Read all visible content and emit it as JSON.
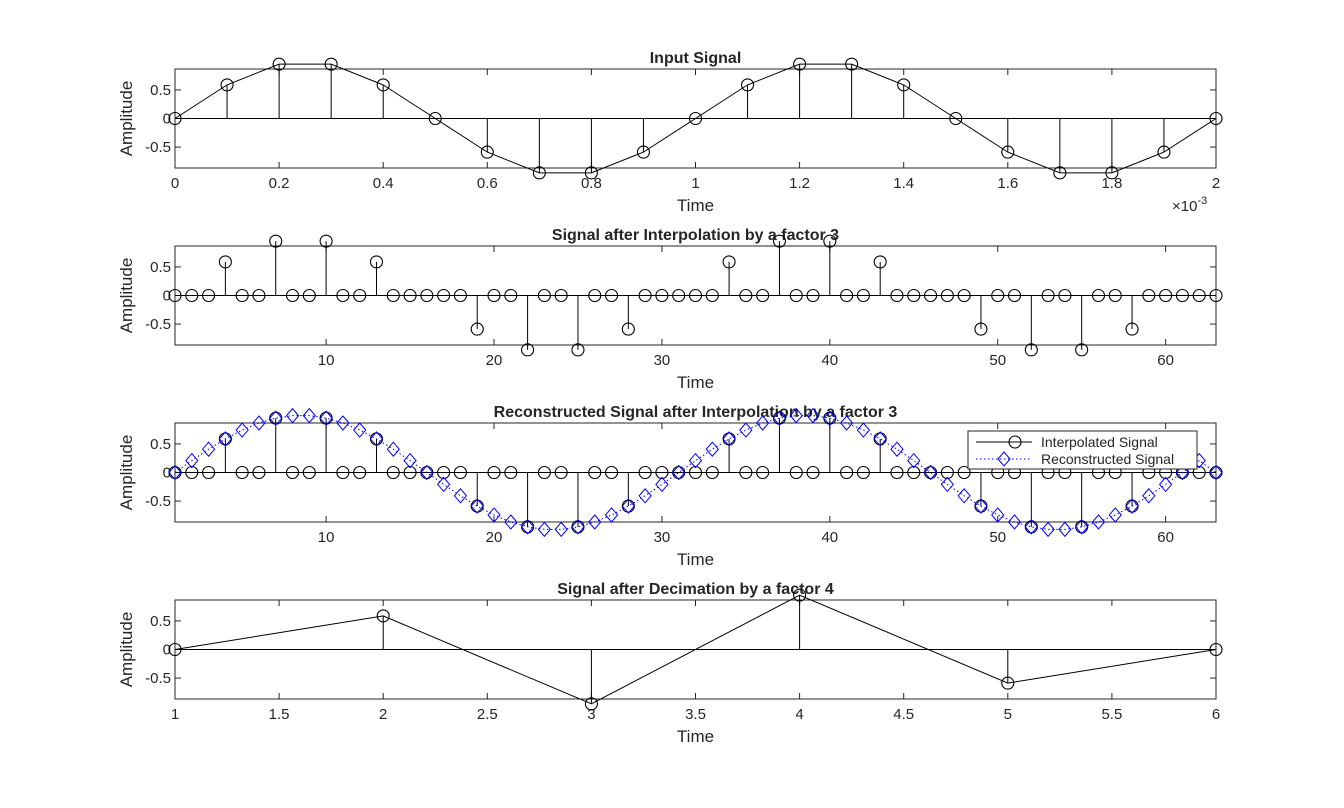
{
  "chart_data": [
    {
      "type": "stem",
      "title": "Input Signal",
      "xlabel": "Time",
      "ylabel": "Amplitude",
      "xlim": [
        0,
        0.002
      ],
      "ylim": [
        -0.866,
        0.866
      ],
      "xticks": [
        0,
        0.0002,
        0.0004,
        0.0006,
        0.0008,
        0.001,
        0.0012,
        0.0014,
        0.0016,
        0.0018,
        0.002
      ],
      "xtick_labels": [
        "0",
        "0.2",
        "0.4",
        "0.6",
        "0.8",
        "1",
        "1.2",
        "1.4",
        "1.6",
        "1.8",
        "2"
      ],
      "x_exponent_label": "×10",
      "x_exponent_power": "-3",
      "yticks": [
        -0.5,
        0,
        0.5
      ],
      "ytick_labels": [
        "-0.5",
        "0",
        "0.5"
      ],
      "connect_line": true,
      "x": [
        0,
        0.0001,
        0.0002,
        0.0003,
        0.0004,
        0.0005,
        0.0006,
        0.0007,
        0.0008,
        0.0009,
        0.001,
        0.0011,
        0.0012,
        0.0013,
        0.0014,
        0.0015,
        0.0016,
        0.0017,
        0.0018,
        0.0019,
        0.002
      ],
      "values": [
        0,
        0.588,
        0.951,
        0.951,
        0.588,
        0,
        -0.588,
        -0.951,
        -0.951,
        -0.588,
        0,
        0.588,
        0.951,
        0.951,
        0.588,
        0,
        -0.588,
        -0.951,
        -0.951,
        -0.588,
        0
      ]
    },
    {
      "type": "stem",
      "title": "Signal after Interpolation by a factor 3",
      "xlabel": "Time",
      "ylabel": "Amplitude",
      "xlim": [
        1,
        63
      ],
      "ylim": [
        -0.866,
        0.866
      ],
      "xticks": [
        10,
        20,
        30,
        40,
        50,
        60
      ],
      "xtick_labels": [
        "10",
        "20",
        "30",
        "40",
        "50",
        "60"
      ],
      "yticks": [
        -0.5,
        0,
        0.5
      ],
      "ytick_labels": [
        "-0.5",
        "0",
        "0.5"
      ],
      "connect_line": false,
      "x_start": 1,
      "values": [
        0,
        0,
        0,
        0.588,
        0,
        0,
        0.951,
        0,
        0,
        0.951,
        0,
        0,
        0.588,
        0,
        0,
        0,
        0,
        0,
        -0.588,
        0,
        0,
        -0.951,
        0,
        0,
        -0.951,
        0,
        0,
        -0.588,
        0,
        0,
        0,
        0,
        0,
        0.588,
        0,
        0,
        0.951,
        0,
        0,
        0.951,
        0,
        0,
        0.588,
        0,
        0,
        0,
        0,
        0,
        -0.588,
        0,
        0,
        -0.951,
        0,
        0,
        -0.951,
        0,
        0,
        -0.588,
        0,
        0,
        0,
        0,
        0
      ]
    },
    {
      "type": "stem",
      "title": "Reconstructed Signal after Interpolation by a factor 3",
      "xlabel": "Time",
      "ylabel": "Amplitude",
      "xlim": [
        1,
        63
      ],
      "ylim": [
        -0.866,
        0.866
      ],
      "xticks": [
        10,
        20,
        30,
        40,
        50,
        60
      ],
      "xtick_labels": [
        "10",
        "20",
        "30",
        "40",
        "50",
        "60"
      ],
      "yticks": [
        -0.5,
        0,
        0.5
      ],
      "ytick_labels": [
        "-0.5",
        "0",
        "0.5"
      ],
      "legend_location": "top-right",
      "series": [
        {
          "name": "Interpolated Signal",
          "style": "stem-circle",
          "color": "#000000",
          "x_start": 1,
          "values": [
            0,
            0,
            0,
            0.588,
            0,
            0,
            0.951,
            0,
            0,
            0.951,
            0,
            0,
            0.588,
            0,
            0,
            0,
            0,
            0,
            -0.588,
            0,
            0,
            -0.951,
            0,
            0,
            -0.951,
            0,
            0,
            -0.588,
            0,
            0,
            0,
            0,
            0,
            0.588,
            0,
            0,
            0.951,
            0,
            0,
            0.951,
            0,
            0,
            0.588,
            0,
            0,
            0,
            0,
            0,
            -0.588,
            0,
            0,
            -0.951,
            0,
            0,
            -0.951,
            0,
            0,
            -0.588,
            0,
            0,
            0,
            0,
            0
          ]
        },
        {
          "name": "Reconstructed Signal",
          "style": "dotted-diamond",
          "color": "#0000ff",
          "x_start": 1,
          "values": [
            0,
            0.208,
            0.407,
            0.588,
            0.743,
            0.866,
            0.951,
            0.995,
            0.995,
            0.951,
            0.866,
            0.743,
            0.588,
            0.407,
            0.208,
            0,
            -0.208,
            -0.407,
            -0.588,
            -0.743,
            -0.866,
            -0.951,
            -0.995,
            -0.995,
            -0.951,
            -0.866,
            -0.743,
            -0.588,
            -0.407,
            -0.208,
            0,
            0.208,
            0.407,
            0.588,
            0.743,
            0.866,
            0.951,
            0.995,
            0.995,
            0.951,
            0.866,
            0.743,
            0.588,
            0.407,
            0.208,
            0,
            -0.208,
            -0.407,
            -0.588,
            -0.743,
            -0.866,
            -0.951,
            -0.995,
            -0.995,
            -0.951,
            -0.866,
            -0.743,
            -0.588,
            -0.407,
            -0.208,
            0,
            0.208,
            0
          ]
        }
      ]
    },
    {
      "type": "stem",
      "title": "Signal after Decimation by a factor 4",
      "xlabel": "Time",
      "ylabel": "Amplitude",
      "xlim": [
        1,
        6
      ],
      "ylim": [
        -0.866,
        0.866
      ],
      "xticks": [
        1,
        1.5,
        2,
        2.5,
        3,
        3.5,
        4,
        4.5,
        5,
        5.5,
        6
      ],
      "xtick_labels": [
        "1",
        "1.5",
        "2",
        "2.5",
        "3",
        "3.5",
        "4",
        "4.5",
        "5",
        "5.5",
        "6"
      ],
      "yticks": [
        -0.5,
        0,
        0.5
      ],
      "ytick_labels": [
        "-0.5",
        "0",
        "0.5"
      ],
      "connect_line": true,
      "x": [
        1,
        2,
        3,
        4,
        5,
        6
      ],
      "values": [
        0,
        0.588,
        -0.951,
        0.951,
        -0.588,
        0
      ]
    }
  ]
}
